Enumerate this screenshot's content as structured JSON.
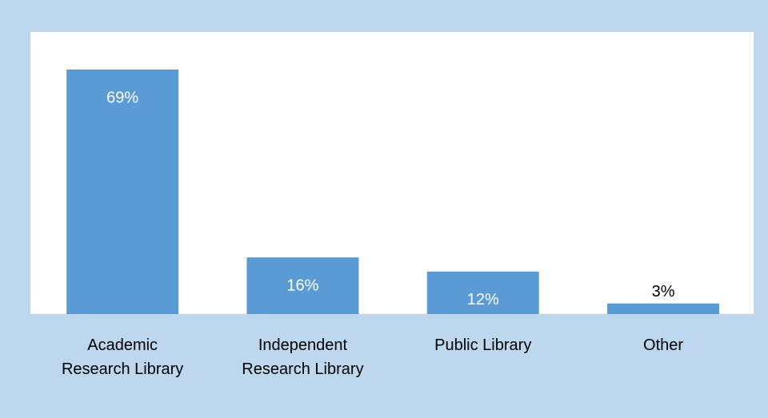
{
  "chart_data": {
    "type": "bar",
    "categories": [
      "Academic Research Library",
      "Independent Research Library",
      "Public Library",
      "Other"
    ],
    "values": [
      69,
      16,
      12,
      3
    ],
    "value_labels": [
      "69%",
      "16%",
      "12%",
      "3%"
    ],
    "color": "#5b9bd5"
  }
}
